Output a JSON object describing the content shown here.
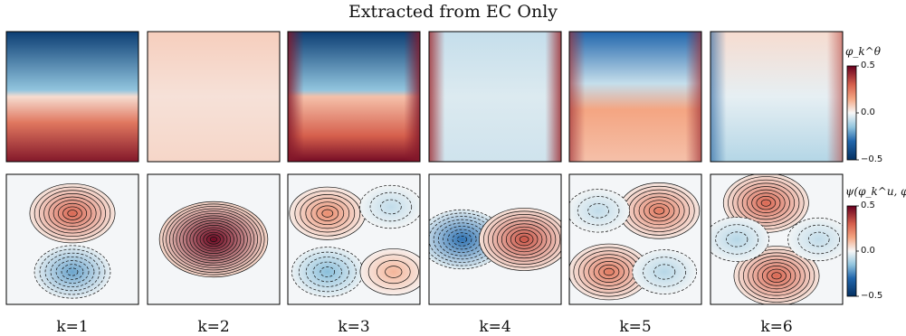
{
  "title": "Extracted from EC Only",
  "chart_data": {
    "type": "heatmap",
    "title": "Extracted from EC Only",
    "modes": [
      "k=1",
      "k=2",
      "k=3",
      "k=4",
      "k=5",
      "k=6"
    ],
    "rows": [
      {
        "name": "theta",
        "colorbar_label": "φ_k^θ",
        "colorbar_ticks": [
          "0.5",
          "0.0",
          "−0.5"
        ],
        "vmin": -0.5,
        "vmax": 0.5,
        "colormap": "RdBu_r",
        "description_per_mode": [
          "blue top half, red bottom half",
          "faint red field, near zero",
          "blue top, red bottom, strong red corners",
          "faint blue field, red left/right edges",
          "blue corners top, red lower-middle band",
          "red top-right and right edge, blue left and bottom-left"
        ]
      },
      {
        "name": "streamfunction",
        "colorbar_label": "ψ(φ_k^u, φ_k^v)",
        "colorbar_ticks": [
          "0.5",
          "0.0",
          "−0.5"
        ],
        "vmin": -0.5,
        "vmax": 0.5,
        "colormap": "RdBu_r",
        "contours": "solid positive, dashed negative",
        "lobes_per_mode": [
          [
            {
              "x": 0.5,
              "y": 0.3,
              "sign": 1,
              "amp": 0.35
            },
            {
              "x": 0.5,
              "y": 0.75,
              "sign": -1,
              "amp": 0.25
            }
          ],
          [
            {
              "x": 0.5,
              "y": 0.5,
              "sign": 1,
              "amp": 0.6
            }
          ],
          [
            {
              "x": 0.3,
              "y": 0.3,
              "sign": 1,
              "amp": 0.25
            },
            {
              "x": 0.3,
              "y": 0.75,
              "sign": -1,
              "amp": 0.2
            },
            {
              "x": 0.78,
              "y": 0.25,
              "sign": -1,
              "amp": 0.1
            },
            {
              "x": 0.8,
              "y": 0.75,
              "sign": 1,
              "amp": 0.15
            }
          ],
          [
            {
              "x": 0.25,
              "y": 0.5,
              "sign": -1,
              "amp": 0.35
            },
            {
              "x": 0.72,
              "y": 0.5,
              "sign": 1,
              "amp": 0.4
            }
          ],
          [
            {
              "x": 0.68,
              "y": 0.28,
              "sign": 1,
              "amp": 0.3
            },
            {
              "x": 0.3,
              "y": 0.75,
              "sign": 1,
              "amp": 0.3
            },
            {
              "x": 0.22,
              "y": 0.28,
              "sign": -1,
              "amp": 0.1
            },
            {
              "x": 0.72,
              "y": 0.75,
              "sign": -1,
              "amp": 0.12
            }
          ],
          [
            {
              "x": 0.42,
              "y": 0.22,
              "sign": 1,
              "amp": 0.35
            },
            {
              "x": 0.5,
              "y": 0.78,
              "sign": 1,
              "amp": 0.35
            },
            {
              "x": 0.2,
              "y": 0.5,
              "sign": -1,
              "amp": 0.12
            },
            {
              "x": 0.82,
              "y": 0.5,
              "sign": -1,
              "amp": 0.1
            }
          ]
        ]
      }
    ]
  },
  "colors": {
    "red": "#a50f15",
    "blue": "#08519c"
  }
}
